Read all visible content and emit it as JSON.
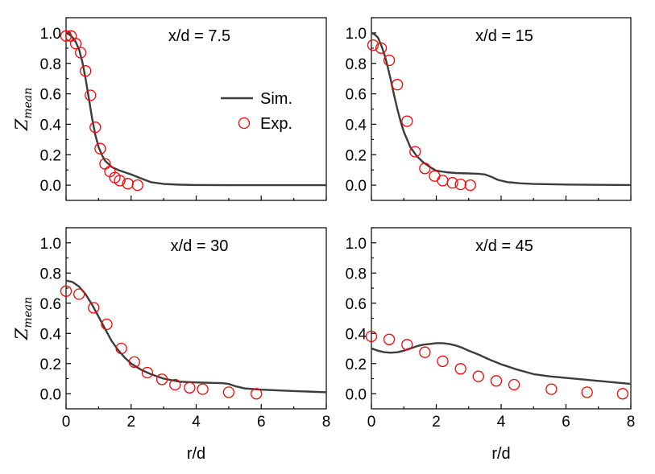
{
  "chart_data": [
    {
      "type": "line",
      "title": "x/d = 7.5",
      "xlabel": "",
      "ylabel": "Z",
      "ylabel_sub": "mean",
      "xlim": [
        0,
        8
      ],
      "ylim": [
        -0.1,
        1.1
      ],
      "xticks": [],
      "yticks": [
        "0.0",
        "0.2",
        "0.4",
        "0.6",
        "0.8",
        "1.0"
      ],
      "legend": {
        "placement": "right",
        "entries": [
          "Sim.",
          "Exp."
        ]
      },
      "series": [
        {
          "name": "Sim.",
          "style": "line",
          "x": [
            0,
            0.1,
            0.2,
            0.3,
            0.4,
            0.5,
            0.6,
            0.7,
            0.8,
            0.9,
            1.0,
            1.1,
            1.2,
            1.4,
            1.6,
            1.8,
            2.0,
            2.3,
            2.6,
            3.0,
            3.5,
            4.0,
            5.0,
            6.0,
            7.0,
            8.0
          ],
          "y": [
            1.0,
            0.99,
            0.97,
            0.94,
            0.89,
            0.81,
            0.7,
            0.57,
            0.44,
            0.33,
            0.25,
            0.2,
            0.16,
            0.12,
            0.1,
            0.085,
            0.07,
            0.045,
            0.02,
            0.008,
            0.003,
            0.001,
            0.0,
            0.0,
            0.0,
            0.0
          ]
        },
        {
          "name": "Exp.",
          "style": "marker",
          "x": [
            0.0,
            0.15,
            0.3,
            0.45,
            0.6,
            0.75,
            0.9,
            1.05,
            1.2,
            1.35,
            1.5,
            1.65,
            1.9,
            2.2
          ],
          "y": [
            0.98,
            0.98,
            0.93,
            0.87,
            0.75,
            0.59,
            0.38,
            0.24,
            0.14,
            0.09,
            0.05,
            0.03,
            0.01,
            0.0
          ]
        }
      ]
    },
    {
      "type": "line",
      "title": "x/d = 15",
      "xlabel": "",
      "ylabel": "",
      "ylabel_sub": "",
      "xlim": [
        0,
        8
      ],
      "ylim": [
        -0.1,
        1.1
      ],
      "xticks": [],
      "yticks": [
        "0.0",
        "0.2",
        "0.4",
        "0.6",
        "0.8",
        "1.0"
      ],
      "series": [
        {
          "name": "Sim.",
          "style": "line",
          "x": [
            0,
            0.1,
            0.2,
            0.3,
            0.4,
            0.5,
            0.6,
            0.7,
            0.8,
            0.9,
            1.0,
            1.1,
            1.2,
            1.4,
            1.6,
            1.8,
            2.0,
            2.3,
            2.6,
            3.0,
            3.3,
            3.5,
            3.7,
            3.9,
            4.2,
            4.6,
            5.0,
            6.0,
            7.0,
            8.0
          ],
          "y": [
            1.0,
            0.99,
            0.97,
            0.92,
            0.86,
            0.78,
            0.69,
            0.59,
            0.5,
            0.42,
            0.35,
            0.3,
            0.25,
            0.19,
            0.15,
            0.12,
            0.095,
            0.085,
            0.08,
            0.077,
            0.075,
            0.07,
            0.055,
            0.035,
            0.02,
            0.012,
            0.008,
            0.004,
            0.002,
            0.001
          ]
        },
        {
          "name": "Exp.",
          "style": "marker",
          "x": [
            0.05,
            0.3,
            0.55,
            0.8,
            1.1,
            1.35,
            1.65,
            1.95,
            2.2,
            2.5,
            2.75,
            3.05
          ],
          "y": [
            0.92,
            0.9,
            0.82,
            0.66,
            0.42,
            0.22,
            0.11,
            0.06,
            0.03,
            0.015,
            0.005,
            0.0
          ]
        }
      ]
    },
    {
      "type": "line",
      "title": "x/d = 30",
      "xlabel": "r/d",
      "ylabel": "Z",
      "ylabel_sub": "mean",
      "xlim": [
        0,
        8
      ],
      "ylim": [
        -0.1,
        1.1
      ],
      "xticks": [
        "0",
        "2",
        "4",
        "6",
        "8"
      ],
      "yticks": [
        "0.0",
        "0.2",
        "0.4",
        "0.6",
        "0.8",
        "1.0"
      ],
      "series": [
        {
          "name": "Sim.",
          "style": "line",
          "x": [
            0,
            0.2,
            0.4,
            0.6,
            0.8,
            1.0,
            1.2,
            1.4,
            1.6,
            1.8,
            2.0,
            2.3,
            2.6,
            3.0,
            3.5,
            4.0,
            4.5,
            4.8,
            5.0,
            5.2,
            5.5,
            6.0,
            7.0,
            8.0
          ],
          "y": [
            0.75,
            0.74,
            0.71,
            0.66,
            0.59,
            0.51,
            0.43,
            0.35,
            0.29,
            0.24,
            0.2,
            0.16,
            0.13,
            0.1,
            0.08,
            0.075,
            0.072,
            0.07,
            0.065,
            0.05,
            0.035,
            0.027,
            0.018,
            0.01
          ]
        },
        {
          "name": "Exp.",
          "style": "marker",
          "x": [
            0.0,
            0.4,
            0.85,
            1.25,
            1.7,
            2.1,
            2.5,
            2.95,
            3.35,
            3.8,
            4.2,
            5.0,
            5.85
          ],
          "y": [
            0.68,
            0.66,
            0.57,
            0.46,
            0.3,
            0.21,
            0.14,
            0.095,
            0.06,
            0.04,
            0.03,
            0.01,
            0.0
          ]
        }
      ]
    },
    {
      "type": "line",
      "title": "x/d = 45",
      "xlabel": "r/d",
      "ylabel": "",
      "ylabel_sub": "",
      "xlim": [
        0,
        8
      ],
      "ylim": [
        -0.1,
        1.1
      ],
      "xticks": [
        "0",
        "2",
        "4",
        "6",
        "8"
      ],
      "yticks": [
        "0.0",
        "0.2",
        "0.4",
        "0.6",
        "0.8",
        "1.0"
      ],
      "series": [
        {
          "name": "Sim.",
          "style": "line",
          "x": [
            0,
            0.2,
            0.4,
            0.6,
            0.8,
            1.0,
            1.2,
            1.4,
            1.6,
            1.8,
            2.0,
            2.2,
            2.4,
            2.6,
            2.8,
            3.0,
            3.3,
            3.6,
            4.0,
            4.5,
            5.0,
            5.5,
            6.0,
            6.5,
            7.0,
            7.5,
            8.0
          ],
          "y": [
            0.3,
            0.285,
            0.275,
            0.272,
            0.275,
            0.285,
            0.3,
            0.315,
            0.325,
            0.33,
            0.335,
            0.335,
            0.33,
            0.32,
            0.305,
            0.285,
            0.26,
            0.23,
            0.195,
            0.16,
            0.13,
            0.115,
            0.105,
            0.095,
            0.085,
            0.075,
            0.065
          ]
        },
        {
          "name": "Exp.",
          "style": "marker",
          "x": [
            0.0,
            0.55,
            1.1,
            1.65,
            2.2,
            2.75,
            3.3,
            3.85,
            4.4,
            5.55,
            6.65,
            7.75
          ],
          "y": [
            0.38,
            0.36,
            0.325,
            0.275,
            0.215,
            0.165,
            0.115,
            0.085,
            0.06,
            0.03,
            0.01,
            0.0
          ]
        }
      ]
    }
  ]
}
